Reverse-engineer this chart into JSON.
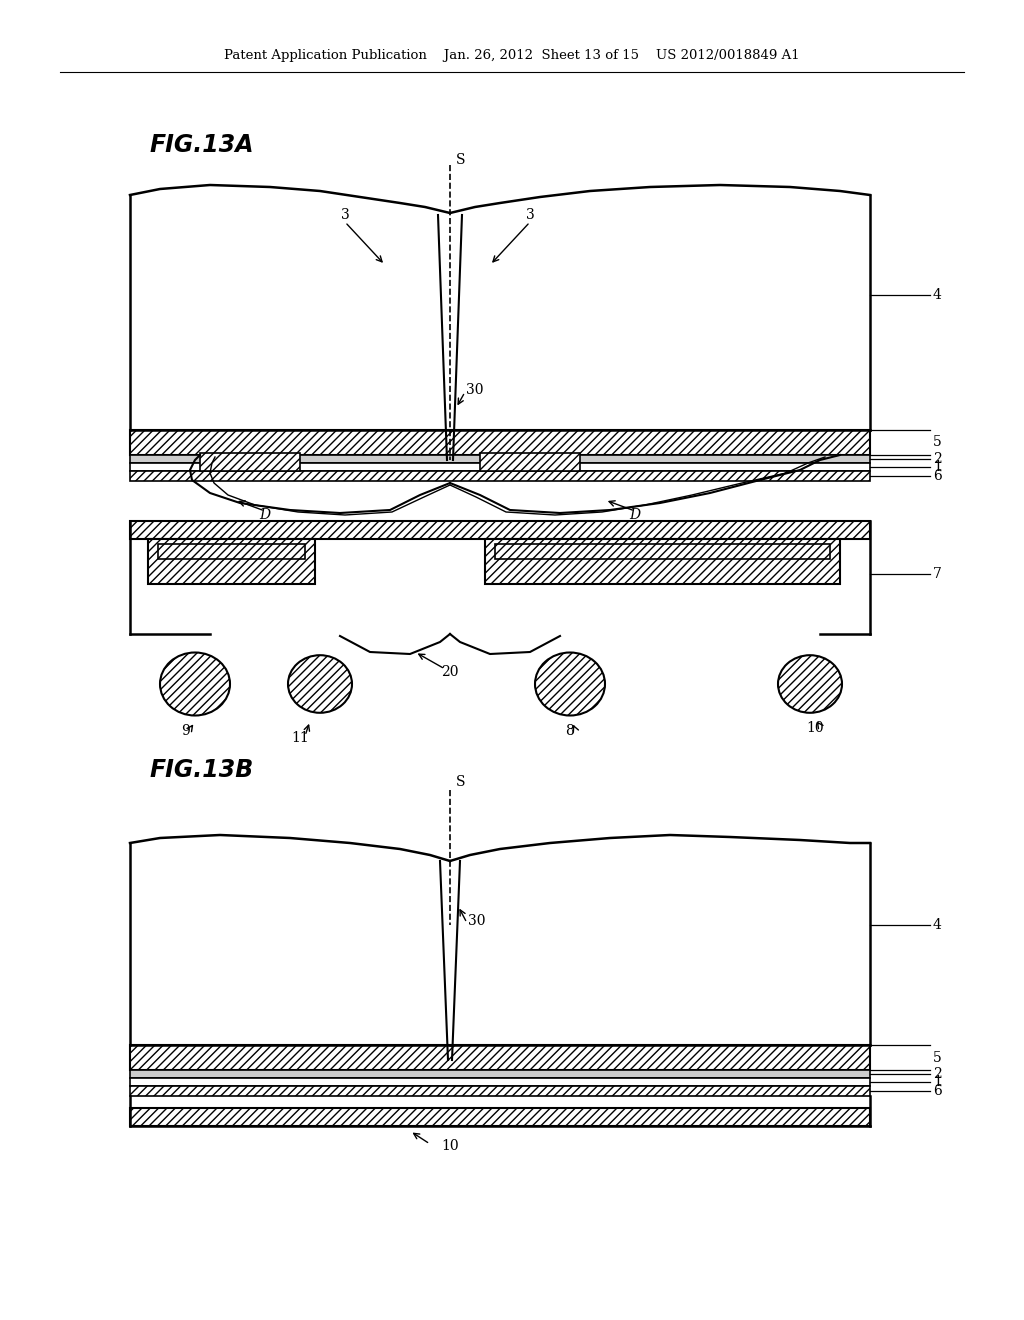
{
  "bg_color": "#ffffff",
  "title_text": "Patent Application Publication    Jan. 26, 2012  Sheet 13 of 15    US 2012/0018849 A1",
  "fig13a_label": "FIG.13A",
  "fig13b_label": "FIG.13B",
  "label_S": "S",
  "label_30a": "30",
  "label_30b": "30",
  "label_3a": "3",
  "label_3b": "3",
  "label_4a": "4",
  "label_4b": "4",
  "label_5a": "5",
  "label_5b": "5",
  "label_2a": "2",
  "label_2b": "2",
  "label_1a": "1",
  "label_1b": "1",
  "label_6a": "6",
  "label_6b": "6",
  "label_7": "7",
  "label_Da": "D",
  "label_Db": "D",
  "label_9": "9",
  "label_11": "11",
  "label_20": "20",
  "label_8": "8",
  "label_10a": "10",
  "label_10b": "10"
}
